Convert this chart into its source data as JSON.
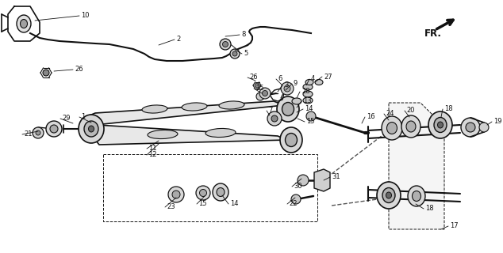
{
  "bg_color": "#ffffff",
  "line_color": "#111111",
  "figsize": [
    6.34,
    3.2
  ],
  "dpi": 100
}
